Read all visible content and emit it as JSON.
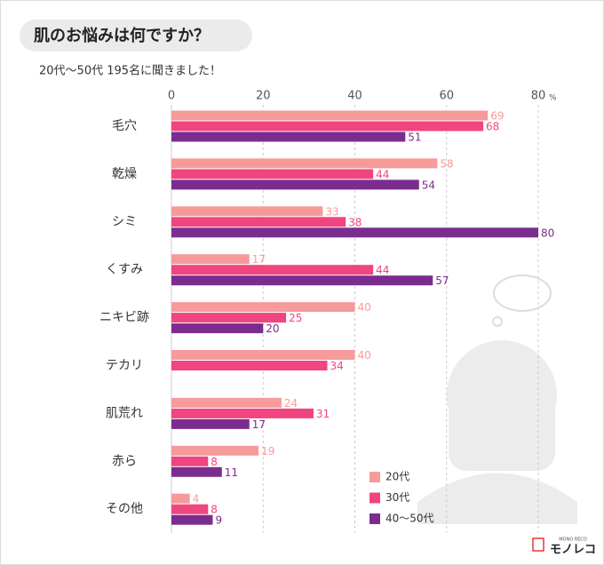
{
  "chart_data": {
    "type": "bar",
    "orientation": "horizontal",
    "title": "肌のお悩みは何ですか？",
    "subtitle": "20代～50代 195名に聞きました！",
    "x_unit": "%",
    "categories": [
      "毛穴",
      "乾燥",
      "シミ",
      "くすみ",
      "ニキビ跡",
      "テカリ",
      "肌荒れ",
      "赤ら",
      "その他"
    ],
    "series": [
      {
        "name": "20代",
        "color": "#f79a9a",
        "values": [
          69,
          58,
          33,
          17,
          40,
          40,
          24,
          19,
          4
        ]
      },
      {
        "name": "30代",
        "color": "#f0457e",
        "values": [
          68,
          44,
          38,
          44,
          25,
          34,
          31,
          8,
          8
        ]
      },
      {
        "name": "40～50代",
        "color": "#7b2d8e",
        "values": [
          51,
          54,
          80,
          57,
          20,
          null,
          17,
          11,
          9
        ]
      }
    ],
    "xlim": [
      0,
      80
    ],
    "xticks": [
      0,
      20,
      40,
      60,
      80
    ],
    "grid": true,
    "legend": "lower right",
    "logo": {
      "small": "MONO RECO",
      "name": "モノレコ"
    }
  }
}
